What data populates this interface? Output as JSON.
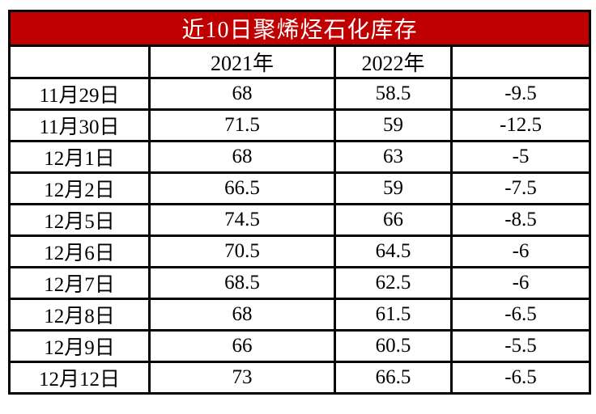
{
  "title": "近10日聚烯烃石化库存",
  "colors": {
    "title_background": "#C00000",
    "title_text": "#FFFFFF",
    "border": "#000000",
    "cell_background": "#FFFFFF",
    "cell_text": "#000000"
  },
  "chart_data": {
    "type": "table",
    "title": "近10日聚烯烃石化库存",
    "columns": [
      "",
      "2021年",
      "2022年",
      ""
    ],
    "rows": [
      [
        "11月29日",
        "68",
        "58.5",
        "-9.5"
      ],
      [
        "11月30日",
        "71.5",
        "59",
        "-12.5"
      ],
      [
        "12月1日",
        "68",
        "63",
        "-5"
      ],
      [
        "12月2日",
        "66.5",
        "59",
        "-7.5"
      ],
      [
        "12月5日",
        "74.5",
        "66",
        "-8.5"
      ],
      [
        "12月6日",
        "70.5",
        "64.5",
        "-6"
      ],
      [
        "12月7日",
        "68.5",
        "62.5",
        "-6"
      ],
      [
        "12月8日",
        "68",
        "61.5",
        "-6.5"
      ],
      [
        "12月9日",
        "66",
        "60.5",
        "-5.5"
      ],
      [
        "12月12日",
        "73",
        "66.5",
        "-6.5"
      ]
    ]
  }
}
